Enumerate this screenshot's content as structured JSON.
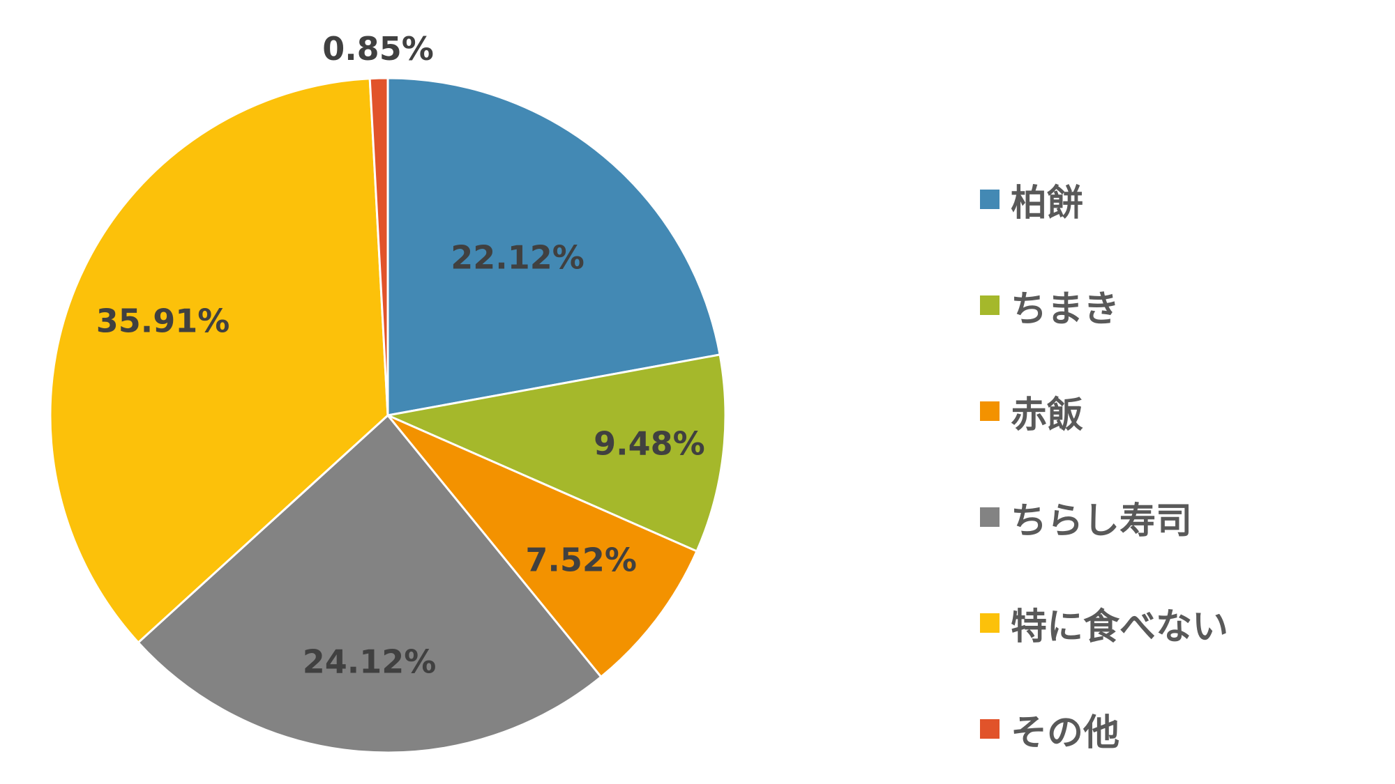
{
  "chart_data": {
    "type": "pie",
    "title": "",
    "categories": [
      "柏餅",
      "ちまき",
      "赤飯",
      "ちらし寿司",
      "特に食べない",
      "その他"
    ],
    "values": [
      22.12,
      9.48,
      7.52,
      24.12,
      35.91,
      0.85
    ],
    "value_labels": [
      "22.12%",
      "9.48%",
      "7.52%",
      "24.12%",
      "35.91%",
      "0.85%"
    ],
    "colors": [
      "#4389B4",
      "#A5B82B",
      "#F39200",
      "#838383",
      "#FCC10A",
      "#E1532A"
    ],
    "start_angle_deg": 0,
    "direction": "clockwise",
    "legend_placement": "right"
  }
}
